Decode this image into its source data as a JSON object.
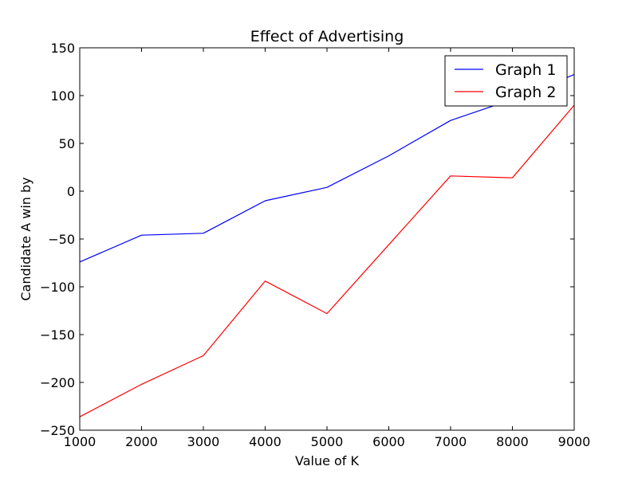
{
  "chart_data": {
    "type": "line",
    "title": "Effect of Advertising",
    "xlabel": "Value of K",
    "ylabel": "Candidate A win by",
    "xlim": [
      1000,
      9000
    ],
    "ylim": [
      -250,
      150
    ],
    "xticks": [
      1000,
      2000,
      3000,
      4000,
      5000,
      6000,
      7000,
      8000,
      9000
    ],
    "yticks": [
      150,
      100,
      50,
      0,
      -50,
      -100,
      -150,
      -200,
      -250
    ],
    "x": [
      1000,
      2000,
      3000,
      4000,
      5000,
      6000,
      7000,
      8000,
      9000
    ],
    "series": [
      {
        "name": "Graph 1",
        "color": "#0000ff",
        "values": [
          -74,
          -46,
          -44,
          -10,
          4,
          37,
          74,
          96,
          122
        ]
      },
      {
        "name": "Graph 2",
        "color": "#ff0000",
        "values": [
          -236,
          -202,
          -172,
          -94,
          -128,
          -56,
          16,
          14,
          90
        ]
      }
    ],
    "legend": "top-right",
    "grid": false
  }
}
